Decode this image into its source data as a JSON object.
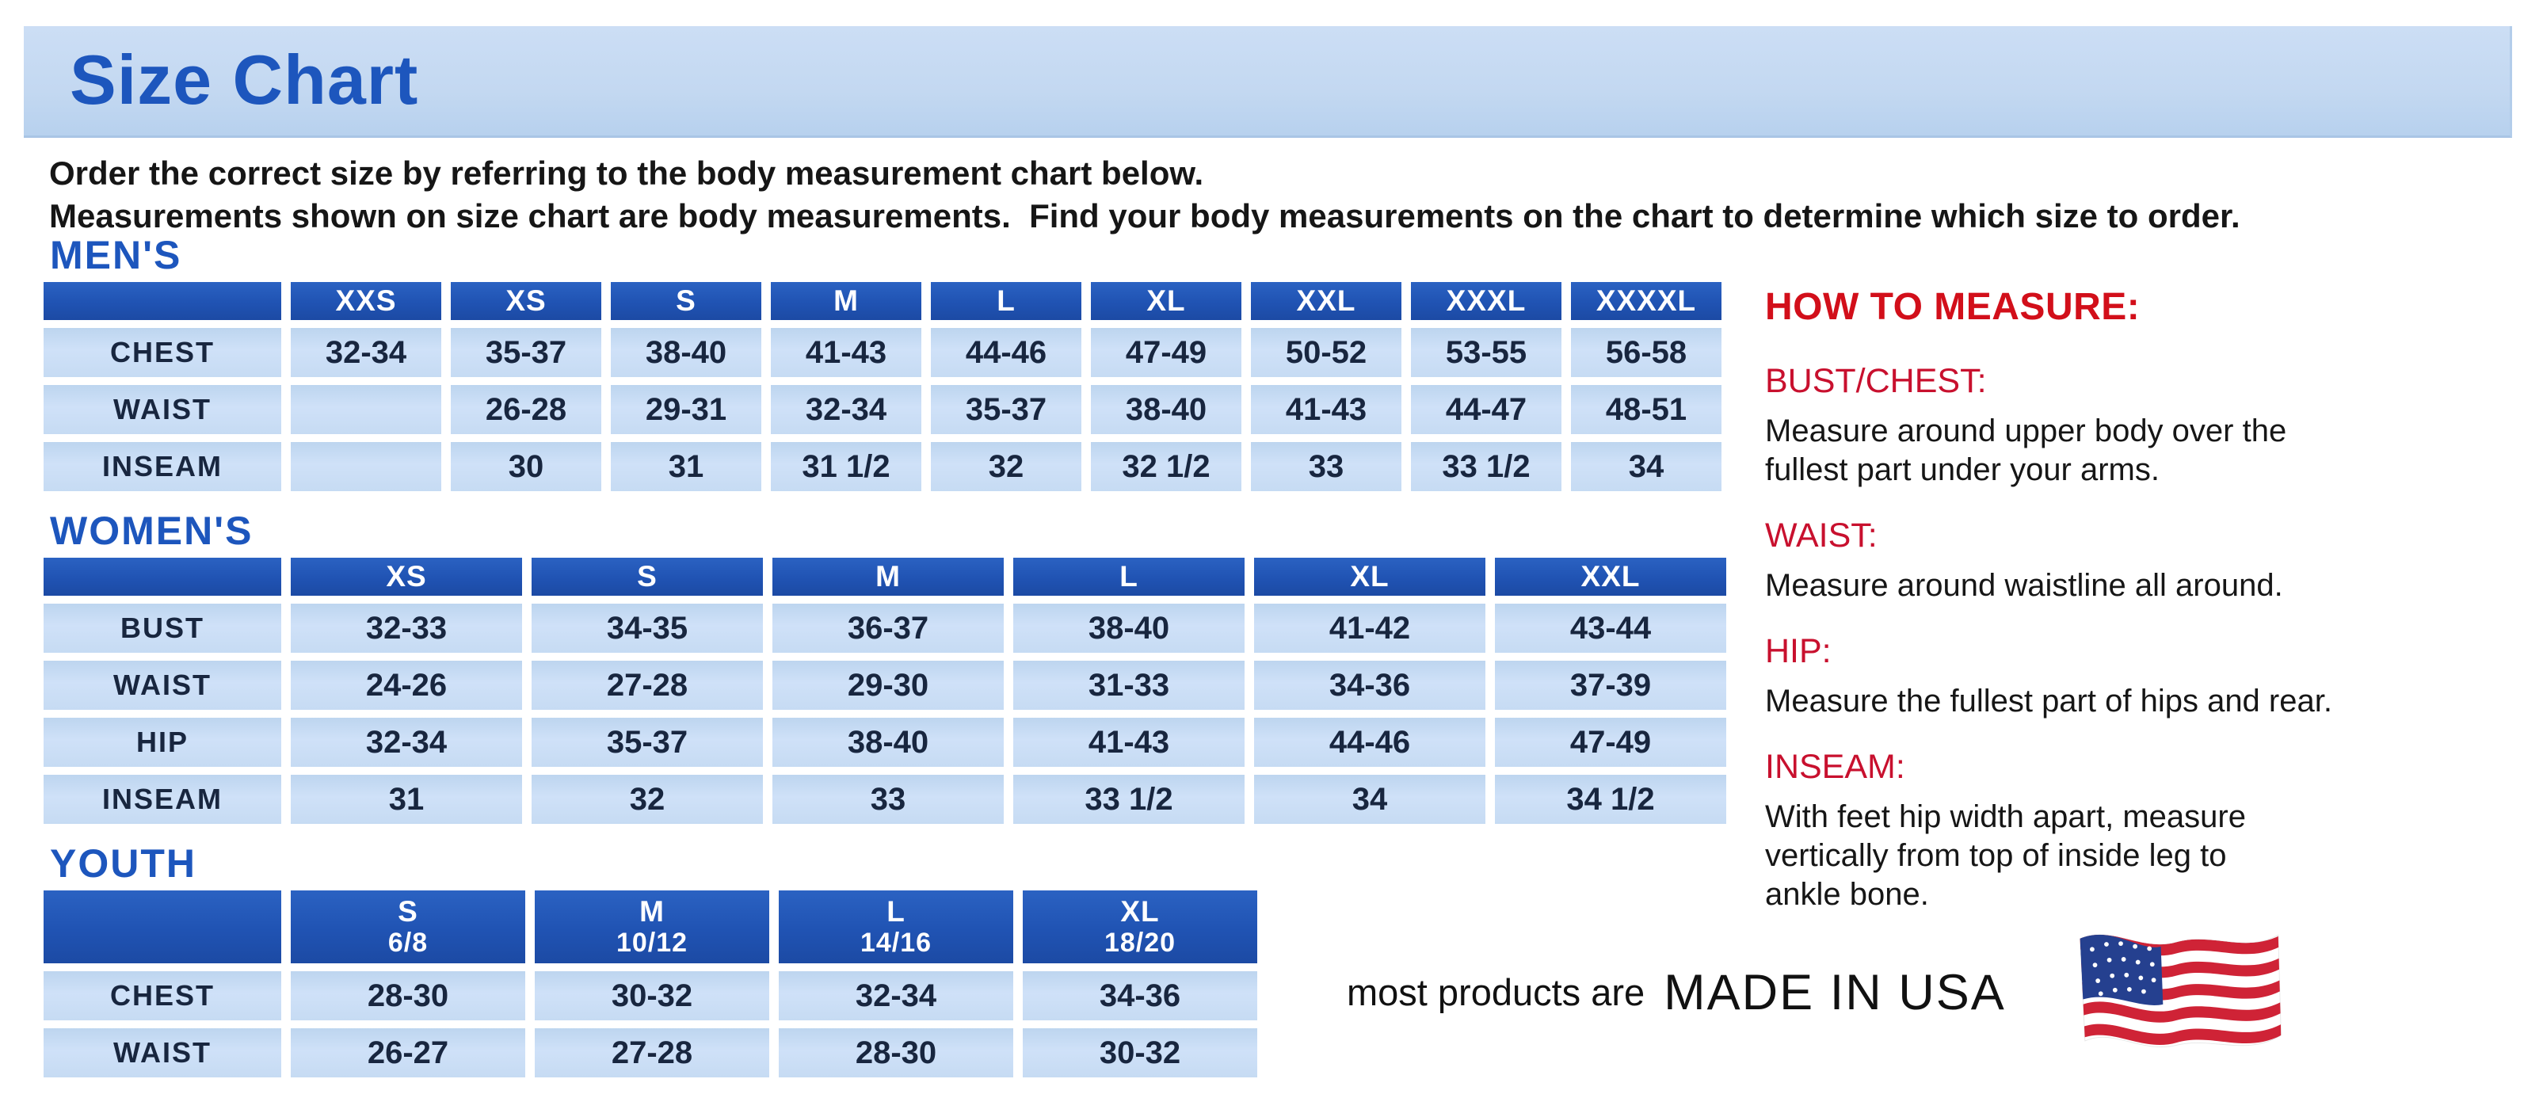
{
  "page": {
    "title": "Size Chart",
    "intro_line1": "Order the correct size by referring to the body measurement chart below.",
    "intro_line2": "Measurements shown on size chart are body measurements.  Find your body measurements on the chart to determine which size to order."
  },
  "colors": {
    "title_blue": "#1d56bd",
    "header_blue": "#2053b3",
    "cell_blue": "#c6dbf3",
    "banner_blue": "#c3d8f1",
    "red_heading": "#d20f1a",
    "red_label": "#c8102e",
    "value_navy": "#18263f",
    "flag_red": "#cf2336",
    "flag_blue": "#25408f"
  },
  "tables": [
    {
      "id": "mens",
      "section_label": "MEN'S",
      "columns": [
        "XXS",
        "XS",
        "S",
        "M",
        "L",
        "XL",
        "XXL",
        "XXXL",
        "XXXXL"
      ],
      "rows": [
        {
          "label": "CHEST",
          "values": [
            "32-34",
            "35-37",
            "38-40",
            "41-43",
            "44-46",
            "47-49",
            "50-52",
            "53-55",
            "56-58"
          ]
        },
        {
          "label": "WAIST",
          "values": [
            "",
            "26-28",
            "29-31",
            "32-34",
            "35-37",
            "38-40",
            "41-43",
            "44-47",
            "48-51"
          ]
        },
        {
          "label": "INSEAM",
          "values": [
            "",
            "30",
            "31",
            "31 1/2",
            "32",
            "32 1/2",
            "33",
            "33 1/2",
            "34"
          ]
        }
      ]
    },
    {
      "id": "womens",
      "section_label": "WOMEN'S",
      "columns": [
        "XS",
        "S",
        "M",
        "L",
        "XL",
        "XXL"
      ],
      "rows": [
        {
          "label": "BUST",
          "values": [
            "32-33",
            "34-35",
            "36-37",
            "38-40",
            "41-42",
            "43-44"
          ]
        },
        {
          "label": "WAIST",
          "values": [
            "24-26",
            "27-28",
            "29-30",
            "31-33",
            "34-36",
            "37-39"
          ]
        },
        {
          "label": "HIP",
          "values": [
            "32-34",
            "35-37",
            "38-40",
            "41-43",
            "44-46",
            "47-49"
          ]
        },
        {
          "label": "INSEAM",
          "values": [
            "31",
            "32",
            "33",
            "33 1/2",
            "34",
            "34 1/2"
          ]
        }
      ]
    },
    {
      "id": "youth",
      "section_label": "YOUTH",
      "columns": [
        {
          "label": "S",
          "sub": "6/8"
        },
        {
          "label": "M",
          "sub": "10/12"
        },
        {
          "label": "L",
          "sub": "14/16"
        },
        {
          "label": "XL",
          "sub": "18/20"
        }
      ],
      "rows": [
        {
          "label": "CHEST",
          "values": [
            "28-30",
            "30-32",
            "32-34",
            "34-36"
          ]
        },
        {
          "label": "WAIST",
          "values": [
            "26-27",
            "27-28",
            "28-30",
            "30-32"
          ]
        }
      ]
    }
  ],
  "how_to_measure": {
    "heading": "HOW TO MEASURE:",
    "items": [
      {
        "label": "BUST/CHEST:",
        "text": "Measure around upper body over the\nfullest part under your arms."
      },
      {
        "label": "WAIST:",
        "text": "Measure around waistline all around."
      },
      {
        "label": "HIP:",
        "text": "Measure the fullest part of hips and rear."
      },
      {
        "label": "INSEAM:",
        "text": "With feet hip width apart, measure\nvertically from top of inside leg to\nankle bone."
      }
    ]
  },
  "footer": {
    "prefix": "most products are",
    "emphasis": "MADE IN USA",
    "flag_icon": "us-flag-icon"
  }
}
